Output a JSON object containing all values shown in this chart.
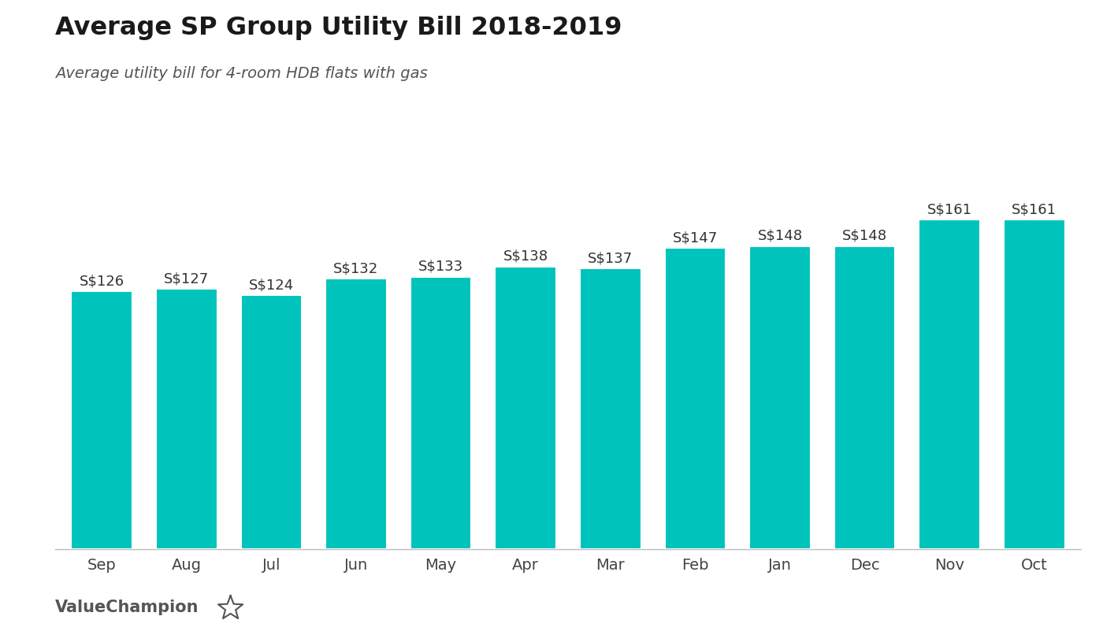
{
  "title": "Average SP Group Utility Bill 2018-2019",
  "subtitle": "Average utility bill for 4-room HDB flats with gas",
  "categories": [
    "Sep",
    "Aug",
    "Jul",
    "Jun",
    "May",
    "Apr",
    "Mar",
    "Feb",
    "Jan",
    "Dec",
    "Nov",
    "Oct"
  ],
  "values": [
    126,
    127,
    124,
    132,
    133,
    138,
    137,
    147,
    148,
    148,
    161,
    161
  ],
  "labels": [
    "S$126",
    "S$127",
    "S$124",
    "S$132",
    "S$133",
    "S$138",
    "S$137",
    "S$147",
    "S$148",
    "S$148",
    "S$161",
    "S$161"
  ],
  "bar_color": "#00C4BC",
  "background_color": "#ffffff",
  "text_color": "#444444",
  "label_color": "#333333",
  "ylim": [
    0,
    185
  ],
  "title_fontsize": 23,
  "subtitle_fontsize": 14,
  "label_fontsize": 13,
  "tick_fontsize": 14,
  "watermark": "ValueChampion",
  "watermark_fontsize": 15
}
